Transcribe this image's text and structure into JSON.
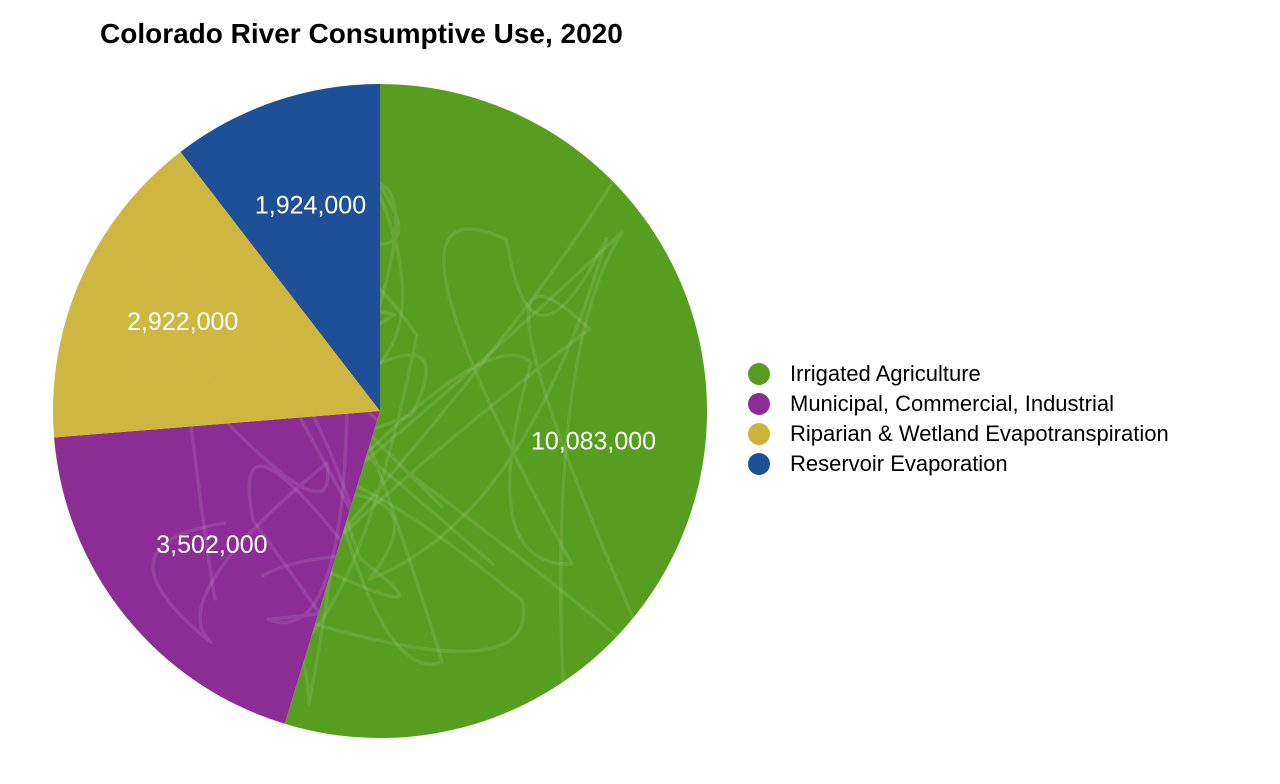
{
  "background_color": "#ffffff",
  "chart_data": {
    "type": "pie",
    "title": "Colorado River Consumptive Use, 2020",
    "legend_position": "right",
    "direction": "clockwise",
    "start_angle_deg": 0,
    "label_color": "#ffffff",
    "title_color": "#000000",
    "legend_text_color": "#000000",
    "total": 18431000,
    "slices": [
      {
        "label": "Irrigated Agriculture",
        "value": 10083000,
        "display_value": "10,083,000",
        "color": "#569d20"
      },
      {
        "label": "Municipal, Commercial, Industrial",
        "value": 3502000,
        "display_value": "3,502,000",
        "color": "#8c2d96"
      },
      {
        "label": "Riparian & Wetland Evapotranspiration",
        "value": 2922000,
        "display_value": "2,922,000",
        "color": "#ccb339"
      },
      {
        "label": "Reservoir Evaporation",
        "value": 1924000,
        "display_value": "1,924,000",
        "color": "#1d5096"
      }
    ]
  }
}
